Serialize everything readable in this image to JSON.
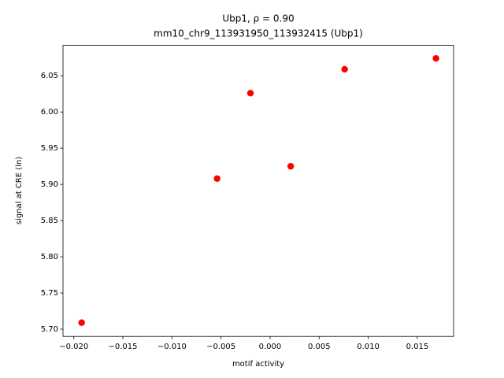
{
  "chart_data": {
    "type": "scatter",
    "title": "Ubp1, ρ = 0.90",
    "subtitle": "mm10_chr9_113931950_113932415 (Ubp1)",
    "x_label": "motif activity",
    "y_label": "signal at CRE (ln)",
    "color": "#ff0000",
    "x": [
      -0.0192,
      -0.0054,
      -0.002,
      0.0021,
      0.0076,
      0.0169
    ],
    "values": [
      5.709,
      5.908,
      6.026,
      5.925,
      6.059,
      6.074
    ],
    "xlim": [
      -0.0211,
      0.0187
    ],
    "ylim": [
      5.69,
      6.092
    ],
    "xticks": [
      {
        "value": -0.02,
        "label": "−0.020"
      },
      {
        "value": -0.015,
        "label": "−0.015"
      },
      {
        "value": -0.01,
        "label": "−0.010"
      },
      {
        "value": -0.005,
        "label": "−0.005"
      },
      {
        "value": 0,
        "label": "0.000"
      },
      {
        "value": 0.005,
        "label": "0.005"
      },
      {
        "value": 0.01,
        "label": "0.010"
      },
      {
        "value": 0.015,
        "label": "0.015"
      }
    ],
    "yticks": [
      {
        "value": 5.7,
        "label": "5.70"
      },
      {
        "value": 5.75,
        "label": "5.75"
      },
      {
        "value": 5.8,
        "label": "5.80"
      },
      {
        "value": 5.85,
        "label": "5.85"
      },
      {
        "value": 5.9,
        "label": "5.90"
      },
      {
        "value": 5.95,
        "label": "5.95"
      },
      {
        "value": 6.0,
        "label": "6.00"
      },
      {
        "value": 6.05,
        "label": "6.05"
      }
    ]
  }
}
